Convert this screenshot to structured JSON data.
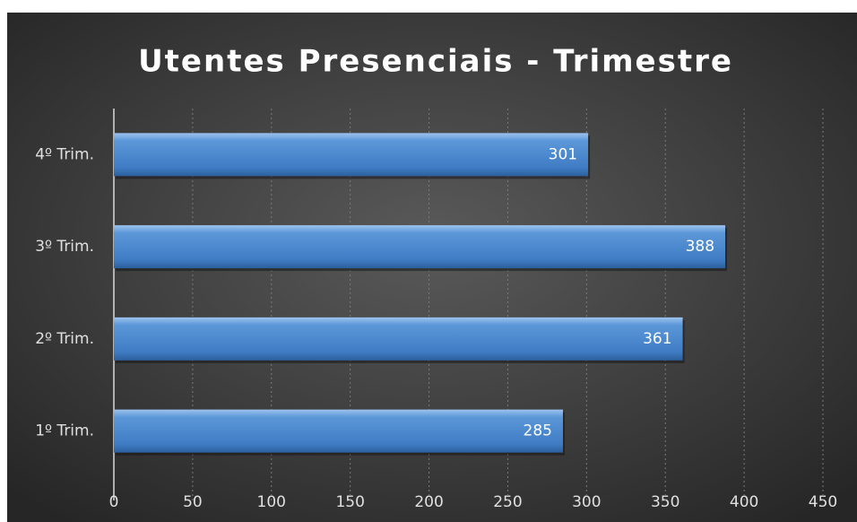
{
  "chart_data": {
    "type": "bar",
    "orientation": "horizontal",
    "title": "Utentes Presenciais - Trimestre",
    "categories": [
      "1º Trim.",
      "2º Trim.",
      "3º Trim.",
      "4º Trim."
    ],
    "values": [
      285,
      361,
      388,
      301
    ],
    "color": "#4a86c8",
    "xlim": [
      0,
      450
    ],
    "xticks": [
      0,
      50,
      100,
      150,
      200,
      250,
      300,
      350,
      400,
      450
    ],
    "grid": true
  }
}
